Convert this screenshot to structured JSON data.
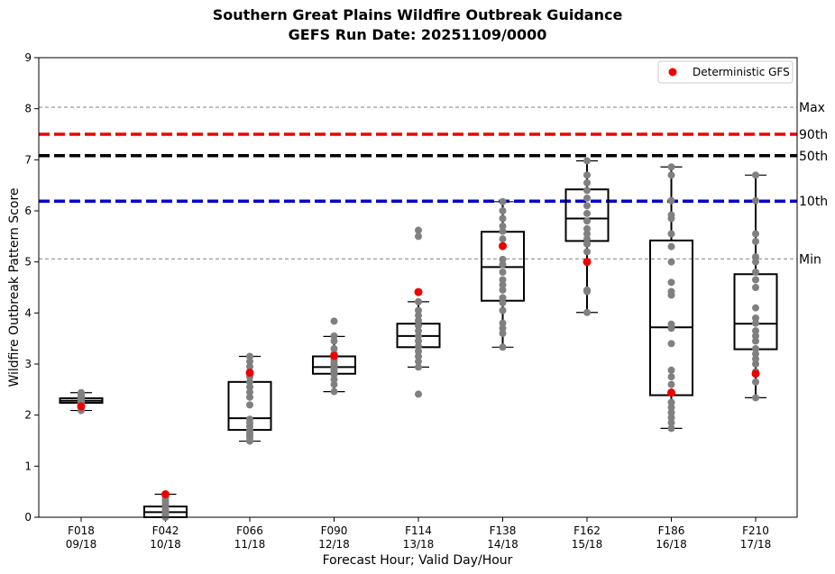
{
  "chart_data": {
    "type": "box",
    "title_line1": "Southern Great Plains Wildfire Outbreak Guidance",
    "title_line2": "GEFS Run Date: 20251109/0000",
    "xlabel": "Forecast Hour; Valid Day/Hour",
    "ylabel": "Wildfire Outbreak Pattern Score",
    "ylim": [
      0,
      9
    ],
    "yticks": [
      "0",
      "1",
      "2",
      "3",
      "4",
      "5",
      "6",
      "7",
      "8",
      "9"
    ],
    "categories": [
      {
        "hour": "F018",
        "valid": "09/18"
      },
      {
        "hour": "F042",
        "valid": "10/18"
      },
      {
        "hour": "F066",
        "valid": "11/18"
      },
      {
        "hour": "F090",
        "valid": "12/18"
      },
      {
        "hour": "F114",
        "valid": "13/18"
      },
      {
        "hour": "F138",
        "valid": "14/18"
      },
      {
        "hour": "F162",
        "valid": "15/18"
      },
      {
        "hour": "F186",
        "valid": "16/18"
      },
      {
        "hour": "F210",
        "valid": "17/18"
      }
    ],
    "boxes": [
      {
        "q1": 2.24,
        "median": 2.28,
        "q3": 2.33,
        "whisker_low": 2.09,
        "whisker_high": 2.44
      },
      {
        "q1": 0.0,
        "median": 0.1,
        "q3": 0.21,
        "whisker_low": 0.0,
        "whisker_high": 0.45
      },
      {
        "q1": 1.71,
        "median": 1.94,
        "q3": 2.65,
        "whisker_low": 1.49,
        "whisker_high": 3.15
      },
      {
        "q1": 2.81,
        "median": 2.94,
        "q3": 3.15,
        "whisker_low": 2.46,
        "whisker_high": 3.54
      },
      {
        "q1": 3.33,
        "median": 3.55,
        "q3": 3.79,
        "whisker_low": 2.94,
        "whisker_high": 4.22
      },
      {
        "q1": 4.24,
        "median": 4.9,
        "q3": 5.59,
        "whisker_low": 3.33,
        "whisker_high": 6.18
      },
      {
        "q1": 5.41,
        "median": 5.85,
        "q3": 6.42,
        "whisker_low": 4.01,
        "whisker_high": 6.98
      },
      {
        "q1": 2.39,
        "median": 3.72,
        "q3": 5.42,
        "whisker_low": 1.74,
        "whisker_high": 6.86
      },
      {
        "q1": 3.29,
        "median": 3.79,
        "q3": 4.76,
        "whisker_low": 2.34,
        "whisker_high": 6.7
      }
    ],
    "members": [
      [
        2.09,
        2.15,
        2.2,
        2.22,
        2.24,
        2.26,
        2.28,
        2.3,
        2.32,
        2.35,
        2.38,
        2.41,
        2.44
      ],
      [
        0.0,
        0.02,
        0.05,
        0.08,
        0.1,
        0.12,
        0.15,
        0.2,
        0.25,
        0.3,
        0.35,
        0.4,
        0.45
      ],
      [
        1.49,
        1.55,
        1.6,
        1.65,
        1.7,
        1.78,
        1.85,
        1.92,
        2.2,
        2.35,
        2.45,
        2.55,
        2.65,
        2.75,
        2.85,
        2.95,
        3.05,
        3.15
      ],
      [
        2.46,
        2.6,
        2.7,
        2.8,
        2.85,
        2.9,
        2.95,
        3.0,
        3.05,
        3.1,
        3.15,
        3.2,
        3.3,
        3.45,
        3.55,
        3.84
      ],
      [
        2.41,
        2.94,
        3.05,
        3.15,
        3.25,
        3.35,
        3.45,
        3.55,
        3.65,
        3.75,
        3.85,
        3.95,
        4.05,
        4.22,
        5.5,
        5.62
      ],
      [
        3.33,
        3.6,
        3.7,
        3.8,
        4.05,
        4.2,
        4.3,
        4.45,
        4.55,
        4.65,
        4.8,
        4.95,
        5.05,
        5.3,
        5.45,
        5.6,
        5.7,
        5.85,
        6.0,
        6.18
      ],
      [
        4.01,
        4.42,
        4.45,
        5.2,
        5.35,
        5.45,
        5.55,
        5.65,
        5.8,
        5.95,
        6.1,
        6.25,
        6.4,
        6.55,
        6.7,
        6.98
      ],
      [
        1.74,
        1.85,
        1.95,
        2.05,
        2.15,
        2.25,
        2.45,
        2.6,
        2.75,
        2.88,
        3.4,
        3.7,
        3.78,
        4.35,
        4.42,
        4.6,
        5.0,
        5.3,
        5.55,
        5.85,
        5.92,
        6.2,
        6.7,
        6.86
      ],
      [
        2.34,
        2.65,
        2.85,
        3.0,
        3.1,
        3.2,
        3.3,
        3.45,
        3.55,
        3.65,
        3.8,
        3.9,
        4.1,
        4.5,
        4.65,
        4.8,
        5.0,
        5.1,
        5.4,
        5.55,
        6.2,
        6.7
      ]
    ],
    "deterministic_gfs": [
      2.17,
      0.45,
      2.83,
      3.16,
      4.41,
      5.31,
      5.0,
      2.44,
      2.81
    ],
    "reference_lines": [
      {
        "label": "Max",
        "value": 8.03,
        "color": "#808080",
        "style": "dashed-thin"
      },
      {
        "label": "90th",
        "value": 7.5,
        "color": "#ee0000",
        "style": "dashed-thick"
      },
      {
        "label": "50th",
        "value": 7.08,
        "color": "#000000",
        "style": "dashed-thick"
      },
      {
        "label": "10th",
        "value": 6.19,
        "color": "#0000cc",
        "style": "dashed-thick"
      },
      {
        "label": "Min",
        "value": 5.06,
        "color": "#808080",
        "style": "dashed-thin"
      }
    ],
    "legend": {
      "label": "Deterministic GFS",
      "placement": "top-right",
      "marker_color": "#ee0000"
    },
    "colors": {
      "member_dots": "#808080",
      "gfs_dots": "#ee0000",
      "box": "#000000"
    }
  }
}
